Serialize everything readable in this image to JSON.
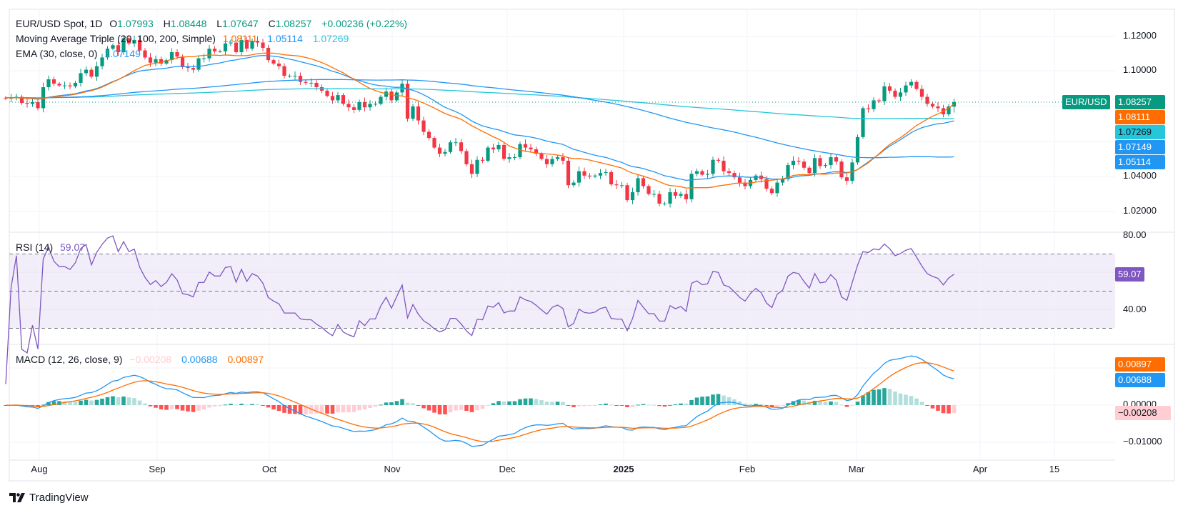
{
  "header": {
    "symbol": "EUR/USD Spot, 1D",
    "open_label": "O",
    "open": "1.07993",
    "high_label": "H",
    "high": "1.08448",
    "low_label": "L",
    "low": "1.07647",
    "close_label": "C",
    "close": "1.08257",
    "change": "+0.00236 (+0.22%)"
  },
  "indicators": {
    "ma_triple": {
      "label": "Moving Average Triple (20, 100, 200, Simple)",
      "v20": "1.08111",
      "v100": "1.05114",
      "v200": "1.07269"
    },
    "ema": {
      "label": "EMA (30, close, 0)",
      "value": "1.07149"
    },
    "rsi": {
      "label": "RSI (14)",
      "value": "59.07"
    },
    "macd": {
      "label": "MACD (12, 26, close, 9)",
      "hist": "−0.00208",
      "macd": "0.00688",
      "signal": "0.00897"
    }
  },
  "price_axis": {
    "ticks": [
      "1.12000",
      "1.10000",
      "1.04000",
      "1.02000"
    ],
    "symbol_tag": "EUR/USD",
    "tags": {
      "close": "1.08257",
      "sma20": "1.08111",
      "sma200": "1.07269",
      "ema30": "1.07149",
      "sma100": "1.05114"
    }
  },
  "rsi_axis": {
    "ticks": [
      "80.00",
      "40.00"
    ],
    "tag": "59.07"
  },
  "macd_axis": {
    "ticks": [
      "0.00000",
      "−0.01000"
    ],
    "tags": {
      "signal": "0.00897",
      "macd": "0.00688",
      "hist": "−0.00208"
    }
  },
  "time_axis": {
    "labels": [
      "Aug",
      "Sep",
      "Oct",
      "Nov",
      "Dec",
      "2025",
      "Feb",
      "Mar",
      "Apr",
      "15"
    ]
  },
  "branding": {
    "name": "TradingView"
  },
  "colors": {
    "up": "#089981",
    "down": "#F23645",
    "sma20": "#FF6D00",
    "sma100": "#2196F3",
    "sma200": "#26C6DA",
    "ema30": "#2196F3",
    "rsi": "#7E57C2",
    "macd": "#2196F3",
    "signal": "#FF6D00",
    "hist_up": "#26A69A",
    "hist_up_light": "#B2DFDB",
    "hist_down": "#FF5252",
    "hist_down_light": "#FFCDD2"
  },
  "chart_data": {
    "type": "candlestick",
    "title": "EUR/USD Spot, 1D",
    "ylim": [
      1.015,
      1.127
    ],
    "rsi_ylim": [
      25,
      82
    ],
    "rsi_bands": [
      30,
      50,
      70
    ],
    "macd_ylim": [
      -0.0148,
      0.0155
    ],
    "last_candle": {
      "open": 1.07993,
      "high": 1.08448,
      "low": 1.07647,
      "close": 1.08257
    },
    "dates": [
      "2024-07-24",
      "2024-07-25",
      "2024-07-26",
      "2024-07-29",
      "2024-07-30",
      "2024-07-31",
      "2024-08-01",
      "2024-08-02",
      "2024-08-05",
      "2024-08-06",
      "2024-08-07",
      "2024-08-08",
      "2024-08-09",
      "2024-08-12",
      "2024-08-13",
      "2024-08-14",
      "2024-08-15",
      "2024-08-16",
      "2024-08-19",
      "2024-08-20",
      "2024-08-21",
      "2024-08-22",
      "2024-08-23",
      "2024-08-26",
      "2024-08-27",
      "2024-08-28",
      "2024-08-29",
      "2024-08-30",
      "2024-09-02",
      "2024-09-03",
      "2024-09-04",
      "2024-09-05",
      "2024-09-06",
      "2024-09-09",
      "2024-09-10",
      "2024-09-11",
      "2024-09-12",
      "2024-09-13",
      "2024-09-16",
      "2024-09-17",
      "2024-09-18",
      "2024-09-19",
      "2024-09-20",
      "2024-09-23",
      "2024-09-24",
      "2024-09-25",
      "2024-09-26",
      "2024-09-27",
      "2024-09-30",
      "2024-10-01",
      "2024-10-02",
      "2024-10-03",
      "2024-10-04",
      "2024-10-07",
      "2024-10-08",
      "2024-10-09",
      "2024-10-10",
      "2024-10-11",
      "2024-10-14",
      "2024-10-15",
      "2024-10-16",
      "2024-10-17",
      "2024-10-18",
      "2024-10-21",
      "2024-10-22",
      "2024-10-23",
      "2024-10-24",
      "2024-10-25",
      "2024-10-28",
      "2024-10-29",
      "2024-10-30",
      "2024-10-31",
      "2024-11-01",
      "2024-11-04",
      "2024-11-05",
      "2024-11-06",
      "2024-11-07",
      "2024-11-08",
      "2024-11-11",
      "2024-11-12",
      "2024-11-13",
      "2024-11-14",
      "2024-11-15",
      "2024-11-18",
      "2024-11-19",
      "2024-11-20",
      "2024-11-21",
      "2024-11-22",
      "2024-11-25",
      "2024-11-26",
      "2024-11-27",
      "2024-11-28",
      "2024-11-29",
      "2024-12-02",
      "2024-12-03",
      "2024-12-04",
      "2024-12-05",
      "2024-12-06",
      "2024-12-09",
      "2024-12-10",
      "2024-12-11",
      "2024-12-12",
      "2024-12-13",
      "2024-12-16",
      "2024-12-17",
      "2024-12-18",
      "2024-12-19",
      "2024-12-20",
      "2024-12-23",
      "2024-12-24",
      "2024-12-25",
      "2024-12-26",
      "2024-12-27",
      "2024-12-30",
      "2024-12-31",
      "2025-01-01",
      "2025-01-02",
      "2025-01-03",
      "2025-01-06",
      "2025-01-07",
      "2025-01-08",
      "2025-01-09",
      "2025-01-10",
      "2025-01-13",
      "2025-01-14",
      "2025-01-15",
      "2025-01-16",
      "2025-01-17",
      "2025-01-20",
      "2025-01-21",
      "2025-01-22",
      "2025-01-23",
      "2025-01-24",
      "2025-01-27",
      "2025-01-28",
      "2025-01-29",
      "2025-01-30",
      "2025-01-31",
      "2025-02-03",
      "2025-02-04",
      "2025-02-05",
      "2025-02-06",
      "2025-02-07",
      "2025-02-10",
      "2025-02-11",
      "2025-02-12",
      "2025-02-13",
      "2025-02-14",
      "2025-02-17",
      "2025-02-18",
      "2025-02-19",
      "2025-02-20",
      "2025-02-21",
      "2025-02-24",
      "2025-02-25",
      "2025-02-26",
      "2025-02-27",
      "2025-02-28",
      "2025-03-03",
      "2025-03-04",
      "2025-03-05",
      "2025-03-06",
      "2025-03-07",
      "2025-03-10",
      "2025-03-11",
      "2025-03-12",
      "2025-03-13",
      "2025-03-14",
      "2025-03-17",
      "2025-03-18",
      "2025-03-19",
      "2025-03-20",
      "2025-03-21",
      "2025-03-24",
      "2025-03-25",
      "2025-03-26",
      "2025-03-27",
      "2025-03-28"
    ],
    "close": [
      1.0845,
      1.085,
      1.0855,
      1.082,
      1.0815,
      1.0825,
      1.079,
      1.091,
      1.0955,
      1.093,
      1.092,
      1.092,
      1.0915,
      1.0935,
      1.099,
      1.101,
      1.097,
      1.103,
      1.108,
      1.113,
      1.115,
      1.111,
      1.119,
      1.116,
      1.118,
      1.112,
      1.108,
      1.105,
      1.107,
      1.1045,
      1.1065,
      1.111,
      1.1085,
      1.1025,
      1.102,
      1.101,
      1.1075,
      1.1075,
      1.113,
      1.1115,
      1.1115,
      1.116,
      1.1165,
      1.111,
      1.118,
      1.113,
      1.1175,
      1.1165,
      1.1135,
      1.1065,
      1.1045,
      1.103,
      1.0975,
      1.0975,
      1.0975,
      1.094,
      1.0935,
      1.0935,
      1.091,
      1.089,
      1.086,
      1.0835,
      1.0865,
      1.0815,
      1.0795,
      1.078,
      1.0825,
      1.0795,
      1.0815,
      1.0815,
      1.0855,
      1.0885,
      1.0835,
      1.088,
      1.093,
      1.073,
      1.08,
      1.072,
      1.0655,
      1.062,
      1.0565,
      1.053,
      1.054,
      1.0595,
      1.0595,
      1.0545,
      1.047,
      1.0415,
      1.0495,
      1.049,
      1.0565,
      1.0555,
      1.058,
      1.05,
      1.051,
      1.051,
      1.0585,
      1.0565,
      1.0555,
      1.053,
      1.05,
      1.047,
      1.05,
      1.051,
      1.049,
      1.035,
      1.0365,
      1.043,
      1.0405,
      1.04,
      1.0405,
      1.042,
      1.0425,
      1.0355,
      1.035,
      1.035,
      1.0265,
      1.031,
      1.039,
      1.0345,
      1.03,
      1.03,
      1.0245,
      1.0245,
      1.031,
      1.029,
      1.03,
      1.027,
      1.0415,
      1.043,
      1.041,
      1.0415,
      1.0495,
      1.049,
      1.043,
      1.042,
      1.0395,
      1.0365,
      1.0345,
      1.038,
      1.0405,
      1.0385,
      1.033,
      1.0305,
      1.0365,
      1.0385,
      1.0465,
      1.049,
      1.0485,
      1.045,
      1.042,
      1.0505,
      1.046,
      1.0465,
      1.051,
      1.0485,
      1.0395,
      1.0375,
      1.048,
      1.0625,
      1.079,
      1.0785,
      1.0835,
      1.083,
      1.0915,
      1.089,
      1.0855,
      1.088,
      1.092,
      1.094,
      1.09,
      1.0855,
      1.0815,
      1.08,
      1.079,
      1.0755,
      1.08,
      1.0826
    ]
  }
}
